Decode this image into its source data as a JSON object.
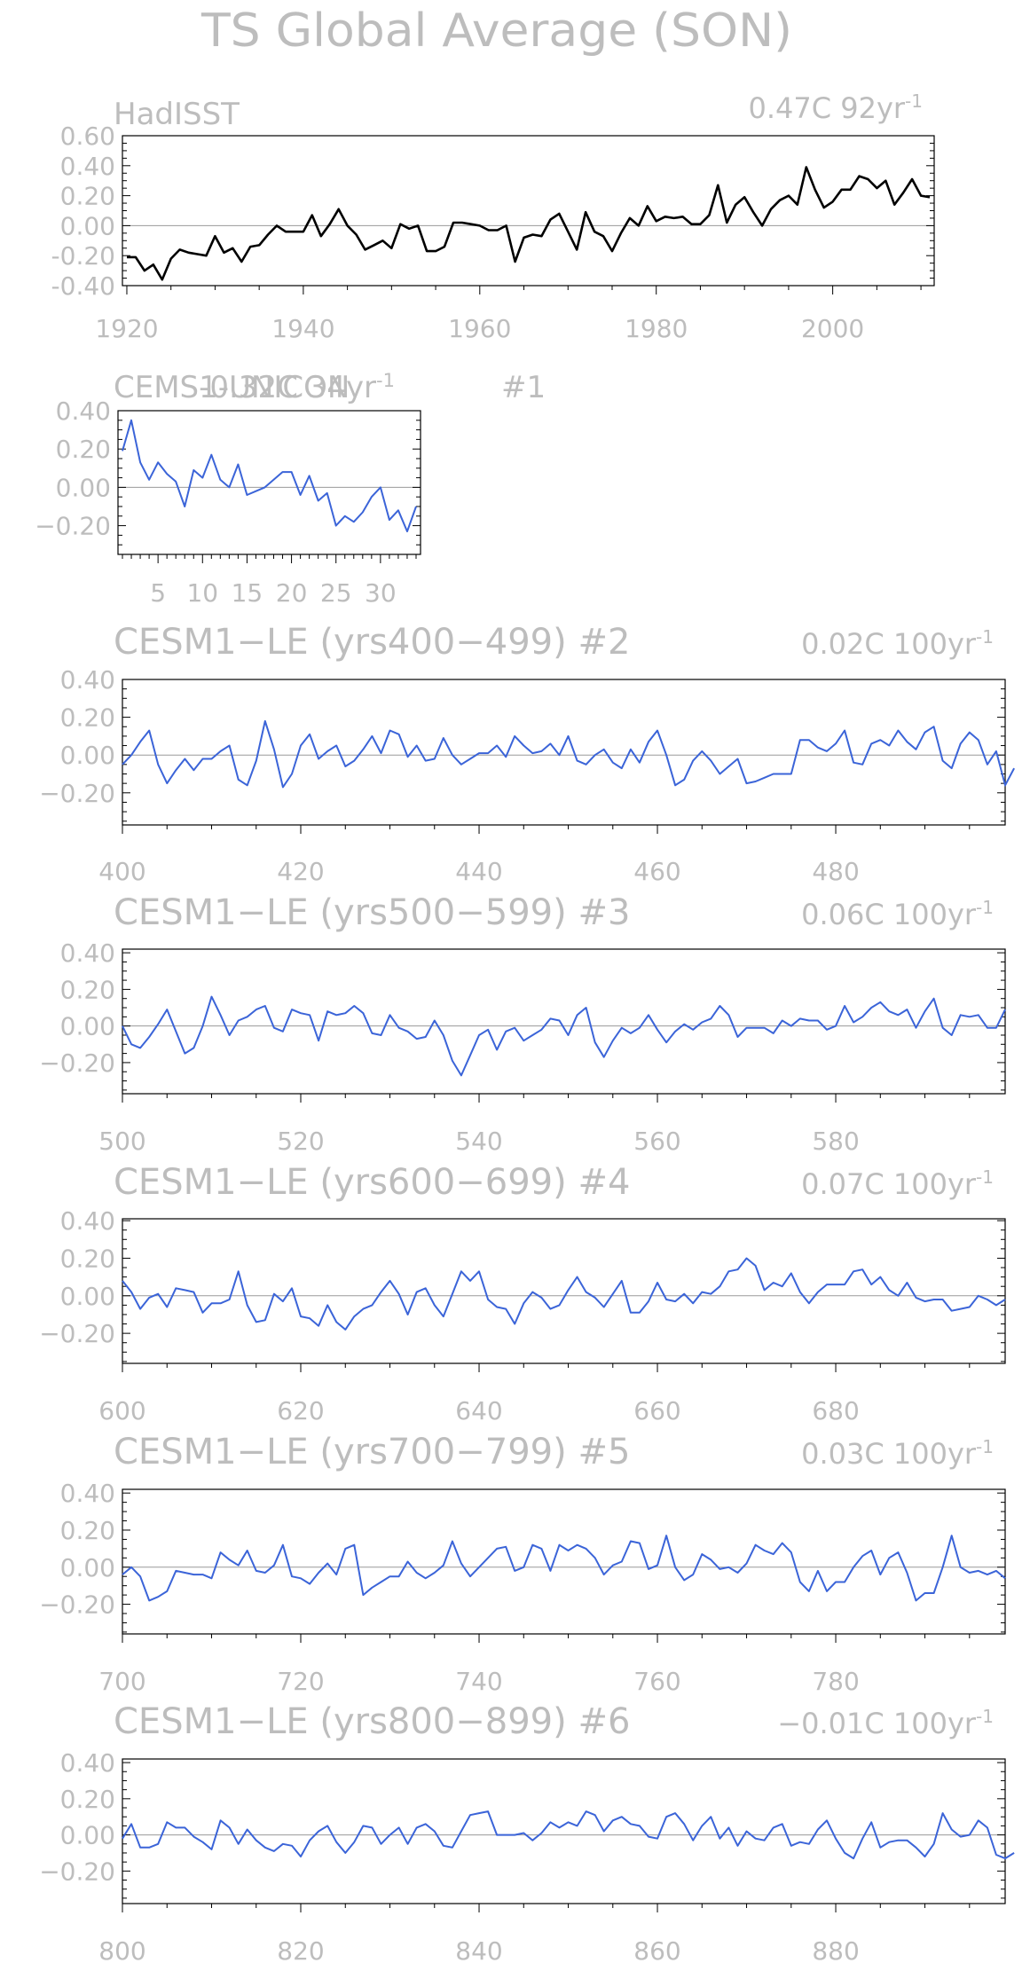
{
  "figure": {
    "title": "TS Global Average (SON)"
  },
  "style": {
    "obs_color": "#000000",
    "model_color": "#3b64d8",
    "text_color": "#bdbdbd"
  },
  "chart_data": [
    {
      "type": "line",
      "title": "HadISST",
      "trend": "0.47C  92yr",
      "trend_sup": "-1",
      "x": [
        1920,
        1921,
        1922,
        1923,
        1924,
        1925,
        1926,
        1927,
        1928,
        1929,
        1930,
        1931,
        1932,
        1933,
        1934,
        1935,
        1936,
        1937,
        1938,
        1939,
        1940,
        1941,
        1942,
        1943,
        1944,
        1945,
        1946,
        1947,
        1948,
        1949,
        1950,
        1951,
        1952,
        1953,
        1954,
        1955,
        1956,
        1957,
        1958,
        1959,
        1960,
        1961,
        1962,
        1963,
        1964,
        1965,
        1966,
        1967,
        1968,
        1969,
        1970,
        1971,
        1972,
        1973,
        1974,
        1975,
        1976,
        1977,
        1978,
        1979,
        1980,
        1981,
        1982,
        1983,
        1984,
        1985,
        1986,
        1987,
        1988,
        1989,
        1990,
        1991,
        1992,
        1993,
        1994,
        1995,
        1996,
        1997,
        1998,
        1999,
        2000,
        2001,
        2002,
        2003,
        2004,
        2005,
        2006,
        2007,
        2008,
        2009,
        2010,
        2011
      ],
      "series": [
        {
          "values": [
            -0.21,
            -0.21,
            -0.3,
            -0.26,
            -0.36,
            -0.22,
            -0.16,
            -0.18,
            -0.19,
            -0.2,
            -0.07,
            -0.18,
            -0.15,
            -0.24,
            -0.14,
            -0.13,
            -0.06,
            0.0,
            -0.04,
            -0.04,
            -0.04,
            0.07,
            -0.07,
            0.01,
            0.11,
            0.0,
            -0.06,
            -0.16,
            -0.13,
            -0.1,
            -0.15,
            0.01,
            -0.02,
            0.0,
            -0.17,
            -0.17,
            -0.14,
            0.02,
            0.02,
            0.01,
            0.0,
            -0.03,
            -0.03,
            0.0,
            -0.24,
            -0.08,
            -0.06,
            -0.07,
            0.04,
            0.08,
            -0.04,
            -0.16,
            0.09,
            -0.04,
            -0.07,
            -0.17,
            -0.05,
            0.05,
            0.0,
            0.13,
            0.03,
            0.06,
            0.05,
            0.06,
            0.01,
            0.01,
            0.07,
            0.27,
            0.02,
            0.14,
            0.19,
            0.09,
            0.0,
            0.11,
            0.17,
            0.2,
            0.14,
            0.39,
            0.24,
            0.12,
            0.16,
            0.24,
            0.24,
            0.33,
            0.31,
            0.25,
            0.3,
            0.14,
            0.22,
            0.31,
            0.2,
            0.19
          ]
        }
      ],
      "ylim": [
        -0.4,
        0.6
      ],
      "yticks": [
        -0.4,
        -0.2,
        0.0,
        0.2,
        0.4,
        0.6
      ],
      "ytick_labels": [
        "-0.40",
        "-0.20",
        "0.00",
        "0.20",
        "0.40",
        "0.60"
      ],
      "xlim": [
        1919.5,
        2011.5
      ],
      "xticks": [
        1920,
        1940,
        1960,
        1980,
        2000
      ],
      "xtick_labels": [
        "1920",
        "1940",
        "1960",
        "1980",
        "2000"
      ]
    },
    {
      "type": "line",
      "title": "CEMS1-UNICON",
      "trend": "-0.32C  34yr",
      "trend_sup": "-1",
      "tag": "#1",
      "x": [
        1,
        2,
        3,
        4,
        5,
        6,
        7,
        8,
        9,
        10,
        11,
        12,
        13,
        14,
        15,
        16,
        17,
        18,
        19,
        20,
        21,
        22,
        23,
        24,
        25,
        26,
        27,
        28,
        29,
        30,
        31,
        32,
        33,
        34
      ],
      "series": [
        {
          "values": [
            0.19,
            0.35,
            0.13,
            0.04,
            0.13,
            0.07,
            0.03,
            -0.1,
            0.09,
            0.05,
            0.17,
            0.04,
            0.0,
            0.12,
            -0.04,
            -0.02,
            0.0,
            0.04,
            0.08,
            0.08,
            -0.04,
            0.06,
            -0.07,
            -0.03,
            -0.2,
            -0.15,
            -0.18,
            -0.13,
            -0.05,
            0.0,
            -0.17,
            -0.12,
            -0.23,
            -0.1
          ]
        }
      ],
      "ylim": [
        -0.35,
        0.4
      ],
      "yticks": [
        -0.2,
        0.0,
        0.2,
        0.4
      ],
      "ytick_labels": [
        "−0.20",
        "0.00",
        "0.20",
        "0.40"
      ],
      "xlim": [
        0.5,
        34.5
      ],
      "xticks": [
        5,
        10,
        15,
        20,
        25,
        30
      ],
      "xtick_labels": [
        "5",
        "10",
        "15",
        "20",
        "25",
        "30"
      ]
    },
    {
      "type": "line",
      "title": "CESM1−LE (yrs400−499) #2",
      "trend": "0.02C  100yr",
      "trend_sup": "-1",
      "x_start": 400,
      "series": [
        {
          "values": [
            -0.05,
            0.0,
            0.07,
            0.13,
            -0.05,
            -0.15,
            -0.08,
            -0.02,
            -0.08,
            -0.02,
            -0.02,
            0.02,
            0.05,
            -0.13,
            -0.16,
            -0.03,
            0.18,
            0.03,
            -0.17,
            -0.1,
            0.05,
            0.11,
            -0.02,
            0.02,
            0.05,
            -0.06,
            -0.03,
            0.03,
            0.1,
            0.01,
            0.13,
            0.11,
            -0.01,
            0.05,
            -0.03,
            -0.02,
            0.09,
            0.0,
            -0.05,
            -0.02,
            0.01,
            0.01,
            0.05,
            -0.01,
            0.1,
            0.05,
            0.01,
            0.02,
            0.06,
            0.0,
            0.1,
            -0.03,
            -0.05,
            0.0,
            0.03,
            -0.04,
            -0.07,
            0.03,
            -0.04,
            0.07,
            0.13,
            0.0,
            -0.16,
            -0.13,
            -0.03,
            0.02,
            -0.03,
            -0.1,
            -0.06,
            -0.02,
            -0.15,
            -0.14,
            -0.12,
            -0.1,
            -0.1,
            -0.1,
            0.08,
            0.08,
            0.04,
            0.02,
            0.06,
            0.13,
            -0.04,
            -0.05,
            0.06,
            0.08,
            0.05,
            0.13,
            0.07,
            0.03,
            0.12,
            0.15,
            -0.03,
            -0.07,
            0.06,
            0.12,
            0.08,
            -0.05,
            0.02,
            -0.16,
            -0.07
          ]
        }
      ],
      "ylim": [
        -0.37,
        0.4
      ],
      "yticks": [
        -0.2,
        0.0,
        0.2,
        0.4
      ],
      "ytick_labels": [
        "−0.20",
        "0.00",
        "0.20",
        "0.40"
      ],
      "xlim": [
        400,
        499
      ],
      "xticks": [
        400,
        420,
        440,
        460,
        480
      ],
      "xtick_labels": [
        "400",
        "420",
        "440",
        "460",
        "480"
      ]
    },
    {
      "type": "line",
      "title": "CESM1−LE (yrs500−599) #3",
      "trend": "0.06C  100yr",
      "trend_sup": "-1",
      "x_start": 500,
      "series": [
        {
          "values": [
            0.0,
            -0.1,
            -0.12,
            -0.06,
            0.01,
            0.09,
            -0.03,
            -0.15,
            -0.12,
            0.0,
            0.16,
            0.06,
            -0.05,
            0.03,
            0.05,
            0.09,
            0.11,
            -0.01,
            -0.03,
            0.09,
            0.07,
            0.06,
            -0.08,
            0.08,
            0.06,
            0.07,
            0.11,
            0.07,
            -0.04,
            -0.05,
            0.06,
            -0.01,
            -0.03,
            -0.07,
            -0.06,
            0.03,
            -0.05,
            -0.19,
            -0.27,
            -0.16,
            -0.05,
            -0.02,
            -0.13,
            -0.03,
            -0.01,
            -0.08,
            -0.05,
            -0.02,
            0.04,
            0.03,
            -0.05,
            0.06,
            0.1,
            -0.09,
            -0.17,
            -0.08,
            -0.01,
            -0.04,
            -0.01,
            0.06,
            -0.02,
            -0.09,
            -0.03,
            0.01,
            -0.02,
            0.02,
            0.04,
            0.11,
            0.06,
            -0.06,
            -0.01,
            -0.01,
            -0.01,
            -0.04,
            0.03,
            0.0,
            0.04,
            0.03,
            0.03,
            -0.02,
            0.0,
            0.11,
            0.02,
            0.05,
            0.1,
            0.13,
            0.08,
            0.06,
            0.09,
            -0.01,
            0.08,
            0.15,
            -0.01,
            -0.05,
            0.06,
            0.05,
            0.06,
            -0.01,
            -0.01,
            0.09
          ]
        }
      ],
      "ylim": [
        -0.37,
        0.42
      ],
      "yticks": [
        -0.2,
        0.0,
        0.2,
        0.4
      ],
      "ytick_labels": [
        "−0.20",
        "0.00",
        "0.20",
        "0.40"
      ],
      "xlim": [
        500,
        599
      ],
      "xticks": [
        500,
        520,
        540,
        560,
        580
      ],
      "xtick_labels": [
        "500",
        "520",
        "540",
        "560",
        "580"
      ]
    },
    {
      "type": "line",
      "title": "CESM1−LE (yrs600−699) #4",
      "trend": "0.07C  100yr",
      "trend_sup": "-1",
      "x_start": 600,
      "series": [
        {
          "values": [
            0.08,
            0.02,
            -0.07,
            -0.01,
            0.01,
            -0.06,
            0.04,
            0.03,
            0.02,
            -0.09,
            -0.04,
            -0.04,
            -0.02,
            0.13,
            -0.05,
            -0.14,
            -0.13,
            0.01,
            -0.03,
            0.04,
            -0.11,
            -0.12,
            -0.16,
            -0.05,
            -0.14,
            -0.18,
            -0.11,
            -0.07,
            -0.05,
            0.02,
            0.08,
            0.01,
            -0.1,
            0.02,
            0.04,
            -0.05,
            -0.11,
            0.01,
            0.13,
            0.08,
            0.13,
            -0.02,
            -0.06,
            -0.07,
            -0.15,
            -0.04,
            0.02,
            -0.01,
            -0.07,
            -0.05,
            0.03,
            0.1,
            0.02,
            -0.01,
            -0.06,
            0.01,
            0.08,
            -0.09,
            -0.09,
            -0.03,
            0.07,
            -0.02,
            -0.03,
            0.01,
            -0.04,
            0.02,
            0.01,
            0.05,
            0.13,
            0.14,
            0.2,
            0.16,
            0.03,
            0.07,
            0.05,
            0.12,
            0.02,
            -0.04,
            0.02,
            0.06,
            0.06,
            0.06,
            0.13,
            0.14,
            0.06,
            0.1,
            0.03,
            0.0,
            0.07,
            -0.01,
            -0.03,
            -0.02,
            -0.02,
            -0.08,
            -0.07,
            -0.06,
            0.0,
            -0.02,
            -0.05,
            -0.02
          ]
        }
      ],
      "ylim": [
        -0.36,
        0.41
      ],
      "yticks": [
        -0.2,
        0.0,
        0.2,
        0.4
      ],
      "ytick_labels": [
        "−0.20",
        "0.00",
        "0.20",
        "0.40"
      ],
      "xlim": [
        600,
        699
      ],
      "xticks": [
        600,
        620,
        640,
        660,
        680
      ],
      "xtick_labels": [
        "600",
        "620",
        "640",
        "660",
        "680"
      ]
    },
    {
      "type": "line",
      "title": "CESM1−LE (yrs700−799) #5",
      "trend": "0.03C  100yr",
      "trend_sup": "-1",
      "x_start": 700,
      "series": [
        {
          "values": [
            -0.04,
            0.0,
            -0.05,
            -0.18,
            -0.16,
            -0.13,
            -0.02,
            -0.03,
            -0.04,
            -0.04,
            -0.06,
            0.08,
            0.04,
            0.01,
            0.09,
            -0.02,
            -0.03,
            0.01,
            0.12,
            -0.05,
            -0.06,
            -0.09,
            -0.03,
            0.02,
            -0.04,
            0.1,
            0.12,
            -0.15,
            -0.11,
            -0.08,
            -0.05,
            -0.05,
            0.03,
            -0.03,
            -0.06,
            -0.03,
            0.01,
            0.14,
            0.02,
            -0.05,
            0.0,
            0.05,
            0.1,
            0.11,
            -0.02,
            0.0,
            0.12,
            0.1,
            -0.02,
            0.12,
            0.09,
            0.12,
            0.1,
            0.05,
            -0.04,
            0.01,
            0.03,
            0.14,
            0.13,
            -0.01,
            0.01,
            0.17,
            0.0,
            -0.07,
            -0.04,
            0.07,
            0.04,
            -0.01,
            0.0,
            -0.03,
            0.02,
            0.12,
            0.09,
            0.07,
            0.13,
            0.08,
            -0.08,
            -0.13,
            -0.02,
            -0.13,
            -0.08,
            -0.08,
            0.0,
            0.06,
            0.09,
            -0.04,
            0.05,
            0.08,
            -0.03,
            -0.18,
            -0.14,
            -0.14,
            0.0,
            0.17,
            0.0,
            -0.03,
            -0.02,
            -0.04,
            -0.02,
            -0.06
          ]
        }
      ],
      "ylim": [
        -0.36,
        0.42
      ],
      "yticks": [
        -0.2,
        0.0,
        0.2,
        0.4
      ],
      "ytick_labels": [
        "−0.20",
        "0.00",
        "0.20",
        "0.40"
      ],
      "xlim": [
        700,
        799
      ],
      "xticks": [
        700,
        720,
        740,
        760,
        780
      ],
      "xtick_labels": [
        "700",
        "720",
        "740",
        "760",
        "780"
      ]
    },
    {
      "type": "line",
      "title": "CESM1−LE (yrs800−899) #6",
      "trend": "−0.01C  100yr",
      "trend_sup": "-1",
      "x_start": 800,
      "series": [
        {
          "values": [
            -0.02,
            0.06,
            -0.07,
            -0.07,
            -0.05,
            0.07,
            0.04,
            0.04,
            -0.01,
            -0.04,
            -0.08,
            0.08,
            0.04,
            -0.05,
            0.03,
            -0.03,
            -0.07,
            -0.09,
            -0.05,
            -0.06,
            -0.12,
            -0.03,
            0.02,
            0.05,
            -0.04,
            -0.1,
            -0.04,
            0.05,
            0.04,
            -0.05,
            0.0,
            0.04,
            -0.05,
            0.04,
            0.06,
            0.02,
            -0.06,
            -0.07,
            0.02,
            0.11,
            0.12,
            0.13,
            0.0,
            0.0,
            0.0,
            0.01,
            -0.03,
            0.01,
            0.07,
            0.04,
            0.07,
            0.05,
            0.13,
            0.11,
            0.02,
            0.08,
            0.1,
            0.06,
            0.05,
            -0.01,
            -0.02,
            0.1,
            0.12,
            0.06,
            -0.03,
            0.05,
            0.1,
            -0.02,
            0.04,
            -0.06,
            0.02,
            -0.02,
            -0.03,
            0.04,
            0.06,
            -0.06,
            -0.04,
            -0.05,
            0.03,
            0.08,
            -0.02,
            -0.1,
            -0.13,
            -0.02,
            0.07,
            -0.07,
            -0.04,
            -0.03,
            -0.03,
            -0.07,
            -0.12,
            -0.05,
            0.12,
            0.03,
            -0.01,
            0.0,
            0.08,
            0.04,
            -0.11,
            -0.13,
            -0.1
          ]
        }
      ],
      "ylim": [
        -0.38,
        0.42
      ],
      "yticks": [
        -0.2,
        0.0,
        0.2,
        0.4
      ],
      "ytick_labels": [
        "−0.20",
        "0.00",
        "0.20",
        "0.40"
      ],
      "xlim": [
        800,
        899
      ],
      "xticks": [
        800,
        820,
        840,
        860,
        880
      ],
      "xtick_labels": [
        "800",
        "820",
        "840",
        "860",
        "880"
      ]
    }
  ]
}
